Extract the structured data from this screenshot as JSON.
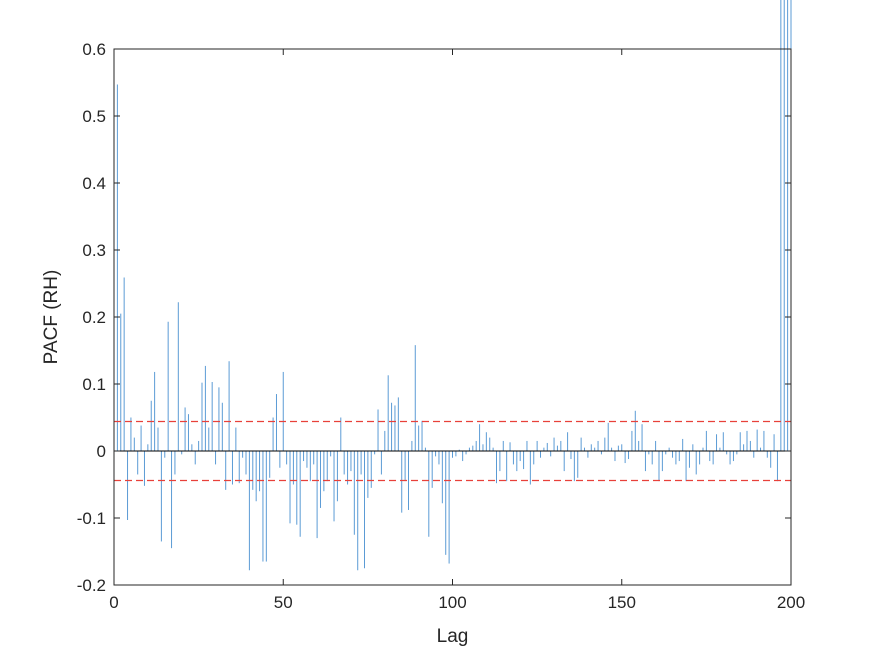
{
  "chart_data": {
    "type": "bar",
    "xlabel": "Lag",
    "ylabel": "PACF (RH)",
    "xlim": [
      0,
      200
    ],
    "ylim": [
      -0.2,
      0.6
    ],
    "xticks": [
      "0",
      "50",
      "100",
      "150",
      "200"
    ],
    "yticks": [
      "-0.2",
      "-0.1",
      "0",
      "0.1",
      "0.2",
      "0.3",
      "0.4",
      "0.5",
      "0.6"
    ],
    "grid": false,
    "legend": "none",
    "colors": {
      "stem": "#5b9bd5",
      "bound": "#e8413a",
      "zero": "#000000"
    },
    "confidence_bounds": [
      0.044,
      -0.044
    ],
    "lags": [
      1,
      2,
      3,
      4,
      5,
      6,
      7,
      8,
      9,
      10,
      11,
      12,
      13,
      14,
      15,
      16,
      17,
      18,
      19,
      20,
      21,
      22,
      23,
      24,
      25,
      26,
      27,
      28,
      29,
      30,
      31,
      32,
      33,
      34,
      35,
      36,
      37,
      38,
      39,
      40,
      41,
      42,
      43,
      44,
      45,
      46,
      47,
      48,
      49,
      50,
      51,
      52,
      53,
      54,
      55,
      56,
      57,
      58,
      59,
      60,
      61,
      62,
      63,
      64,
      65,
      66,
      67,
      68,
      69,
      70,
      71,
      72,
      73,
      74,
      75,
      76,
      77,
      78,
      79,
      80,
      81,
      82,
      83,
      84,
      85,
      86,
      87,
      88,
      89,
      90,
      91,
      92,
      93,
      94,
      95,
      96,
      97,
      98,
      99,
      100,
      101,
      102,
      103,
      104,
      105,
      106,
      107,
      108,
      109,
      110,
      111,
      112,
      113,
      114,
      115,
      116,
      117,
      118,
      119,
      120,
      121,
      122,
      123,
      124,
      125,
      126,
      127,
      128,
      129,
      130,
      131,
      132,
      133,
      134,
      135,
      136,
      137,
      138,
      139,
      140,
      141,
      142,
      143,
      144,
      145,
      146,
      147,
      148,
      149,
      150,
      151,
      152,
      153,
      154,
      155,
      156,
      157,
      158,
      159,
      160,
      161,
      162,
      163,
      164,
      165,
      166,
      167,
      168,
      169,
      170,
      171,
      172,
      173,
      174,
      175,
      176,
      177,
      178,
      179,
      180,
      181,
      182,
      183,
      184,
      185,
      186,
      187,
      188,
      189,
      190,
      191,
      192,
      193,
      194,
      195,
      196,
      197,
      198,
      199,
      200
    ],
    "values": [
      0.547,
      0.205,
      0.259,
      -0.103,
      0.05,
      0.02,
      -0.035,
      0.038,
      -0.052,
      0.01,
      0.075,
      0.118,
      0.035,
      -0.135,
      -0.01,
      0.193,
      -0.145,
      -0.035,
      0.222,
      -0.005,
      0.065,
      0.055,
      0.01,
      -0.02,
      0.015,
      0.102,
      0.127,
      0.035,
      0.103,
      -0.02,
      0.095,
      0.072,
      -0.058,
      0.134,
      -0.05,
      0.035,
      -0.048,
      -0.01,
      -0.035,
      -0.178,
      -0.058,
      -0.075,
      -0.06,
      -0.165,
      -0.165,
      -0.04,
      0.05,
      0.085,
      -0.025,
      0.118,
      -0.02,
      -0.108,
      -0.05,
      -0.11,
      -0.128,
      -0.015,
      -0.025,
      -0.045,
      -0.02,
      -0.13,
      -0.085,
      -0.06,
      -0.045,
      -0.008,
      -0.105,
      -0.075,
      0.05,
      -0.035,
      -0.05,
      -0.03,
      -0.125,
      -0.178,
      -0.035,
      -0.175,
      -0.07,
      -0.055,
      -0.005,
      0.062,
      -0.035,
      0.03,
      0.113,
      0.072,
      0.068,
      0.08,
      -0.092,
      -0.045,
      -0.088,
      0.015,
      0.158,
      0.038,
      0.045,
      0.005,
      -0.128,
      -0.055,
      -0.008,
      -0.02,
      -0.078,
      -0.155,
      -0.168,
      -0.01,
      -0.008,
      0.002,
      -0.015,
      -0.005,
      0.005,
      0.008,
      0.015,
      0.04,
      0.01,
      0.028,
      0.02,
      0.005,
      -0.048,
      -0.03,
      0.015,
      -0.045,
      0.013,
      -0.02,
      -0.03,
      -0.015,
      -0.027,
      0.015,
      -0.05,
      -0.02,
      0.015,
      -0.01,
      0.005,
      0.012,
      -0.008,
      0.02,
      0.008,
      0.015,
      -0.03,
      0.028,
      -0.012,
      -0.045,
      -0.04,
      0.02,
      0.005,
      -0.01,
      0.01,
      0.005,
      0.015,
      -0.005,
      0.02,
      0.042,
      0.005,
      -0.015,
      0.008,
      0.01,
      -0.018,
      -0.012,
      0.03,
      0.06,
      0.015,
      0.04,
      -0.03,
      -0.005,
      -0.02,
      0.015,
      -0.045,
      -0.03,
      -0.005,
      0.005,
      -0.01,
      -0.02,
      -0.015,
      0.018,
      -0.045,
      -0.025,
      0.01,
      -0.035,
      -0.02,
      0.005,
      0.03,
      -0.015,
      -0.02,
      0.025,
      0.005,
      0.028,
      -0.005,
      -0.02,
      -0.015,
      -0.005,
      0.028,
      0.01,
      0.03,
      0.015,
      -0.01,
      0.032,
      0.005,
      0.03,
      -0.01,
      -0.025,
      0.025,
      -0.045
    ]
  }
}
